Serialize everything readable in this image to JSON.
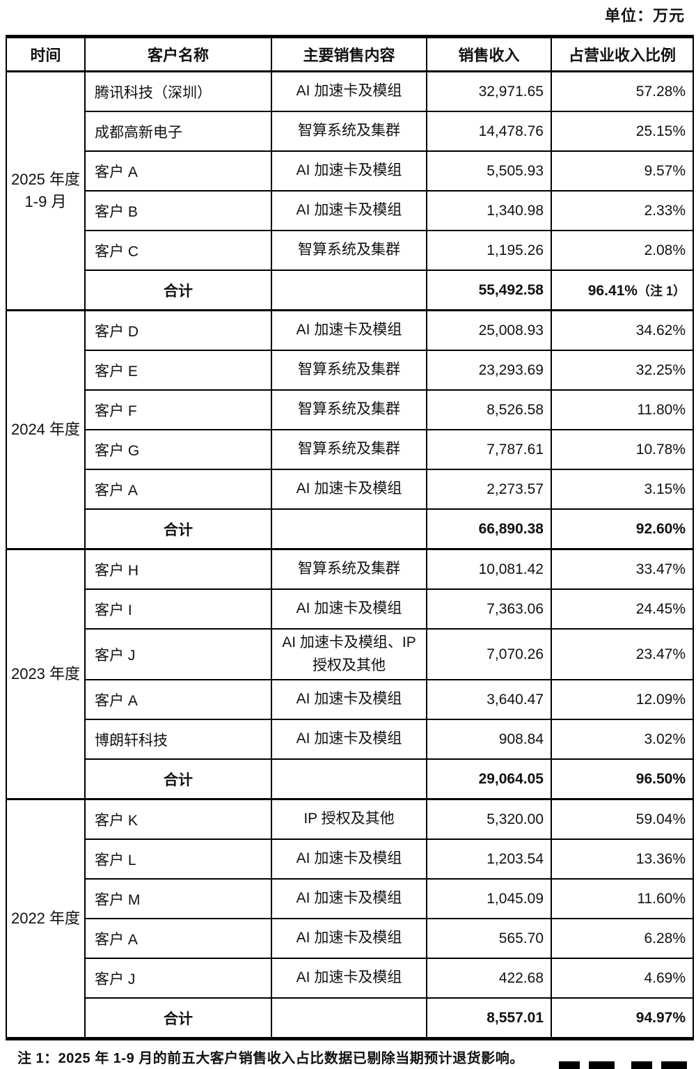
{
  "unit_label": "单位：万元",
  "footnote": "注 1：2025 年 1-9 月的前五大客户销售收入占比数据已剔除当期预计退货影响。",
  "table": {
    "headers": [
      "时间",
      "客户名称",
      "主要销售内容",
      "销售收入",
      "占营业收入比例"
    ],
    "sections": [
      {
        "period_line1": "2025 年度",
        "period_line2": "1-9 月",
        "rows": [
          {
            "customer": "腾讯科技（深圳）",
            "content": "AI 加速卡及模组",
            "revenue": "32,971.65",
            "ratio": "57.28%"
          },
          {
            "customer": "成都高新电子",
            "content": "智算系统及集群",
            "revenue": "14,478.76",
            "ratio": "25.15%"
          },
          {
            "customer": "客户 A",
            "content": "AI 加速卡及模组",
            "revenue": "5,505.93",
            "ratio": "9.57%"
          },
          {
            "customer": "客户 B",
            "content": "AI 加速卡及模组",
            "revenue": "1,340.98",
            "ratio": "2.33%"
          },
          {
            "customer": "客户 C",
            "content": "智算系统及集群",
            "revenue": "1,195.26",
            "ratio": "2.08%"
          }
        ],
        "total": {
          "label": "合计",
          "revenue": "55,492.58",
          "ratio": "96.41%",
          "ratio_note": "（注 1）"
        }
      },
      {
        "period_line1": "2024 年度",
        "period_line2": "",
        "rows": [
          {
            "customer": "客户 D",
            "content": "AI 加速卡及模组",
            "revenue": "25,008.93",
            "ratio": "34.62%"
          },
          {
            "customer": "客户 E",
            "content": "智算系统及集群",
            "revenue": "23,293.69",
            "ratio": "32.25%"
          },
          {
            "customer": "客户 F",
            "content": "智算系统及集群",
            "revenue": "8,526.58",
            "ratio": "11.80%"
          },
          {
            "customer": "客户 G",
            "content": "智算系统及集群",
            "revenue": "7,787.61",
            "ratio": "10.78%"
          },
          {
            "customer": "客户 A",
            "content": "AI 加速卡及模组",
            "revenue": "2,273.57",
            "ratio": "3.15%"
          }
        ],
        "total": {
          "label": "合计",
          "revenue": "66,890.38",
          "ratio": "92.60%",
          "ratio_note": ""
        }
      },
      {
        "period_line1": "2023 年度",
        "period_line2": "",
        "rows": [
          {
            "customer": "客户 H",
            "content": "智算系统及集群",
            "revenue": "10,081.42",
            "ratio": "33.47%"
          },
          {
            "customer": "客户 I",
            "content": "AI 加速卡及模组",
            "revenue": "7,363.06",
            "ratio": "24.45%"
          },
          {
            "customer": "客户 J",
            "content": "AI 加速卡及模组、IP 授权及其他",
            "revenue": "7,070.26",
            "ratio": "23.47%"
          },
          {
            "customer": "客户 A",
            "content": "AI 加速卡及模组",
            "revenue": "3,640.47",
            "ratio": "12.09%"
          },
          {
            "customer": "博朗轩科技",
            "content": "AI 加速卡及模组",
            "revenue": "908.84",
            "ratio": "3.02%"
          }
        ],
        "total": {
          "label": "合计",
          "revenue": "29,064.05",
          "ratio": "96.50%",
          "ratio_note": ""
        }
      },
      {
        "period_line1": "2022 年度",
        "period_line2": "",
        "rows": [
          {
            "customer": "客户 K",
            "content": "IP 授权及其他",
            "revenue": "5,320.00",
            "ratio": "59.04%"
          },
          {
            "customer": "客户 L",
            "content": "AI 加速卡及模组",
            "revenue": "1,203.54",
            "ratio": "13.36%"
          },
          {
            "customer": "客户 M",
            "content": "AI 加速卡及模组",
            "revenue": "1,045.09",
            "ratio": "11.60%"
          },
          {
            "customer": "客户 A",
            "content": "AI 加速卡及模组",
            "revenue": "565.70",
            "ratio": "6.28%"
          },
          {
            "customer": "客户 J",
            "content": "AI 加速卡及模组",
            "revenue": "422.68",
            "ratio": "4.69%"
          }
        ],
        "total": {
          "label": "合计",
          "revenue": "8,557.01",
          "ratio": "94.97%",
          "ratio_note": ""
        }
      }
    ]
  }
}
